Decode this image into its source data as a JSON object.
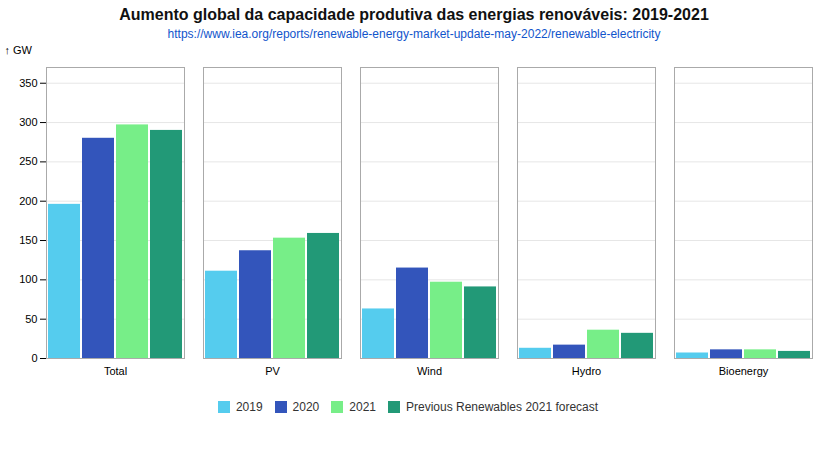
{
  "chart_data": {
    "type": "bar",
    "title": "Aumento global da capacidade produtiva das energias renováveis: 2019-2021",
    "subtitle": "https://www.iea.org/reports/renewable-energy-market-update-may-2022/renewable-electricity",
    "ylabel": "GW",
    "categories": [
      "Total",
      "PV",
      "Wind",
      "Hydro",
      "Bioenergy"
    ],
    "series": [
      {
        "name": "2019",
        "color": "#55CCEE",
        "values": [
          196,
          111,
          63,
          13,
          7
        ]
      },
      {
        "name": "2020",
        "color": "#3355BB",
        "values": [
          280,
          137,
          115,
          17,
          11
        ]
      },
      {
        "name": "2021",
        "color": "#77EE88",
        "values": [
          297,
          153,
          97,
          36,
          11
        ]
      },
      {
        "name": "Previous Renewables 2021 forecast",
        "color": "#229977",
        "values": [
          290,
          159,
          91,
          32,
          9
        ]
      }
    ],
    "ylim": [
      0,
      370
    ],
    "yticks": [
      0,
      50,
      100,
      150,
      200,
      250,
      300,
      350
    ],
    "grid": true,
    "legend": "bottom"
  }
}
